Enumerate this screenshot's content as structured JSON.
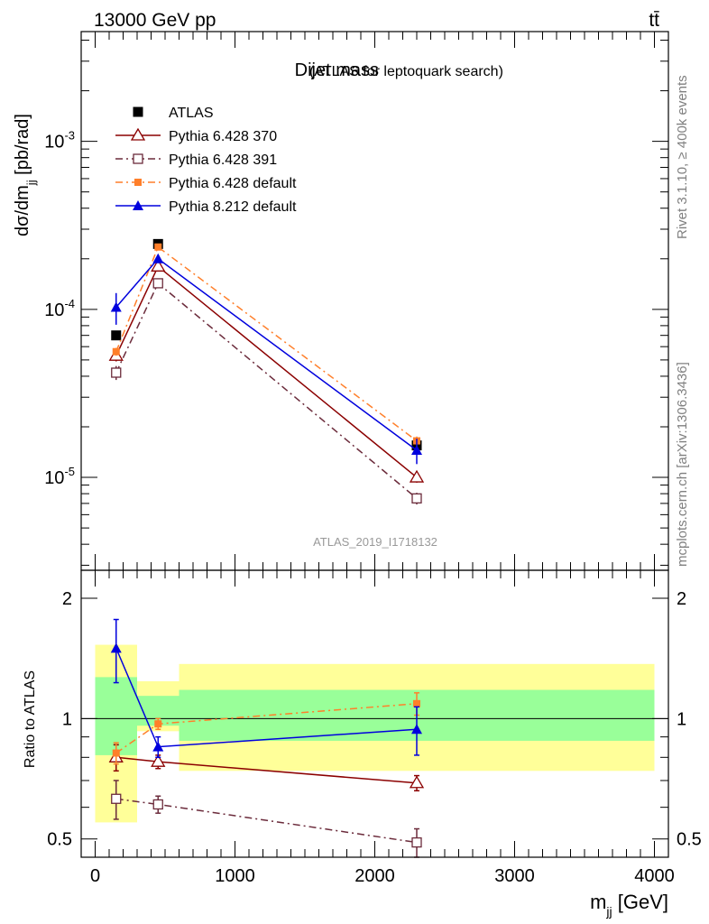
{
  "header": {
    "energy_label": "13000 GeV pp",
    "process_label": "tt̄",
    "title": "Dijet mass",
    "subtitle": "(ATLAS for leptoquark search)",
    "analysis_id": "ATLAS_2019_I1718132",
    "rivet_label": "Rivet 3.1.10, ≥ 400k events",
    "source_label": "mcplots.cern.ch [arXiv:1306.3436]"
  },
  "colors": {
    "atlas": "#000000",
    "pythia6_370": "#8b0000",
    "pythia6_391": "#6b2b3b",
    "pythia6_default": "#ff7f2a",
    "pythia8_default": "#0000dd",
    "band_outer": "#ffff99",
    "band_inner": "#99ff99"
  },
  "chart_data": [
    {
      "type": "line",
      "panel": "main",
      "title": "Dijet mass (ATLAS for leptoquark search)",
      "xlabel": "m_jj [GeV]",
      "ylabel": "dσ/dm_jj [pb/rad]",
      "yscale": "log",
      "xlim": [
        -100,
        4100
      ],
      "ylim": [
        2.8e-06,
        0.0045
      ],
      "ytick_labels": [
        "10^-5",
        "10^-4",
        "10^-3"
      ],
      "legend_position": "top-left",
      "series": [
        {
          "name": "ATLAS",
          "style": "data",
          "x": [
            150,
            450,
            2300
          ],
          "y": [
            7e-05,
            0.000245,
            1.55e-05
          ]
        },
        {
          "name": "Pythia 6.428 370",
          "style": "open-triangle-solid",
          "x": [
            150,
            450,
            2300
          ],
          "y": [
            5.3e-05,
            0.00018,
            1e-05
          ],
          "err": [
            4e-06,
            8e-06,
            7e-07
          ]
        },
        {
          "name": "Pythia 6.428 391",
          "style": "open-square-dashdot",
          "x": [
            150,
            450,
            2300
          ],
          "y": [
            4.2e-05,
            0.000143,
            7.5e-06
          ],
          "err": [
            4e-06,
            8e-06,
            6e-07
          ]
        },
        {
          "name": "Pythia 6.428 default",
          "style": "filled-square-dashdot",
          "x": [
            150,
            450,
            2300
          ],
          "y": [
            5.6e-05,
            0.000235,
            1.65e-05
          ],
          "err": [
            3e-06,
            8e-06,
            1e-06
          ]
        },
        {
          "name": "Pythia 8.212 default",
          "style": "filled-triangle-solid",
          "x": [
            150,
            450,
            2300
          ],
          "y": [
            0.000103,
            0.0002,
            1.45e-05
          ],
          "err": [
            2.2e-05,
            1e-05,
            2.5e-06
          ]
        }
      ]
    },
    {
      "type": "line",
      "panel": "ratio",
      "xlabel": "m_jj [GeV]",
      "ylabel": "Ratio to ATLAS",
      "xlim": [
        -100,
        4100
      ],
      "ylim": [
        0.45,
        2.35
      ],
      "xtick_labels": [
        "0",
        "1000",
        "2000",
        "3000",
        "4000"
      ],
      "ytick_labels": [
        "0.5",
        "1",
        "2"
      ],
      "reference_line": 1.0,
      "uncertainty_bands": [
        {
          "xlow": 0,
          "xhigh": 300,
          "outer": [
            0.55,
            1.53
          ],
          "inner": [
            0.81,
            1.27
          ]
        },
        {
          "xlow": 300,
          "xhigh": 600,
          "outer": [
            0.93,
            1.24
          ],
          "inner": [
            0.96,
            1.14
          ]
        },
        {
          "xlow": 600,
          "xhigh": 4000,
          "outer": [
            0.74,
            1.37
          ],
          "inner": [
            0.88,
            1.18
          ]
        }
      ],
      "series": [
        {
          "name": "Pythia 6.428 370",
          "x": [
            150,
            450,
            2300
          ],
          "y": [
            0.8,
            0.78,
            0.69
          ],
          "err": [
            0.06,
            0.03,
            0.03
          ]
        },
        {
          "name": "Pythia 6.428 391",
          "x": [
            150,
            450,
            2300
          ],
          "y": [
            0.63,
            0.61,
            0.49
          ],
          "err": [
            0.07,
            0.03,
            0.04
          ]
        },
        {
          "name": "Pythia 6.428 default",
          "x": [
            150,
            450,
            2300
          ],
          "y": [
            0.82,
            0.97,
            1.09
          ],
          "err": [
            0.05,
            0.03,
            0.07
          ]
        },
        {
          "name": "Pythia 8.212 default",
          "x": [
            150,
            450,
            2300
          ],
          "y": [
            1.5,
            0.85,
            0.94
          ],
          "err": [
            0.27,
            0.05,
            0.13
          ]
        }
      ]
    }
  ]
}
